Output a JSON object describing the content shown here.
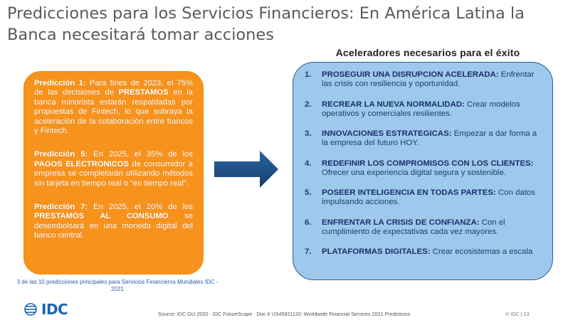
{
  "slide": {
    "title_line1": "Predicciones para los Servicios Financieros: En América Latina la",
    "title_line2": "Banca necesitará tomar acciones"
  },
  "predictions": [
    {
      "head": "Predicción 1:",
      "t1": " Para fines de 2023, el 75% de las decisiones de ",
      "bold": "PRESTAMOS",
      "t2": " en la banca minorista estarán respaldadas por propuestas de Fintech, lo que subraya la aceleración de la colaboración entre bancos y Fintech."
    },
    {
      "head": "Predicción 5:",
      "t1": " En 2025, el 35% de los ",
      "bold": "PAGOS ELECTRONICOS",
      "t2": " de consumidor a empresa se completarán utilizando métodos sin tarjeta en tiempo real o \"en tiempo real\"."
    },
    {
      "head": "Predicción 7:",
      "t1": " En 2025, el 20% de los ",
      "bold": "PRESTAMOS AL CONSUMO",
      "t2": " se desembolsará en una moneda digital del banco central."
    }
  ],
  "caption": "3 de las 10 predicciones principales para Servicios Financieros Mundiales IDC - 2021",
  "accelerators": {
    "title": "Aceleradores necesarios para el éxito",
    "items": [
      {
        "num": "1.",
        "head": "PROSEGUIR UNA DISRUPCION ACELERADA:",
        "text": " Enfrentar las crisis con resiliencia y oportunidad."
      },
      {
        "num": "2.",
        "head": "RECREAR LA NUEVA NORMALIDAD:",
        "text": " Crear modelos operativos y comerciales resilientes."
      },
      {
        "num": "3.",
        "head": "INNOVACIONES ESTRATEGICAS:",
        "text": " Empezar a dar forma a la empresa del futuro HOY."
      },
      {
        "num": "4.",
        "head": "REDEFINIR LOS COMPROMISOS CON LOS CLIENTES:",
        "text": " Ofrecer una experiencia digital segura y sostenible."
      },
      {
        "num": "5.",
        "head": "POSEER INTELIGENCIA EN TODAS PARTES:",
        "text": " Con datos impulsando acciones."
      },
      {
        "num": "6.",
        "head": "ENFRENTAR LA CRISIS DE CONFIANZA:",
        "text": " Con el cumplimiento de expectativas cada vez mayores."
      },
      {
        "num": "7.",
        "head": "PLATAFORMAS DIGITALES:",
        "text": " Crear ecosistemas a escala"
      }
    ]
  },
  "footer": {
    "logo": "IDC",
    "source": "Source: IDC  Oct 2020 · IDC FutureScape · Doc # US45821120: Worldwide Financial Services 2021 Predictions",
    "page": "© IDC |  13"
  },
  "colors": {
    "orange": "#f7931d",
    "blue_box": "#9ec8ec",
    "arrow": "#1f4e86",
    "idc_blue": "#1d64b4"
  },
  "icons": {
    "arrow": "right-arrow-icon",
    "logo": "idc-logo-icon"
  }
}
